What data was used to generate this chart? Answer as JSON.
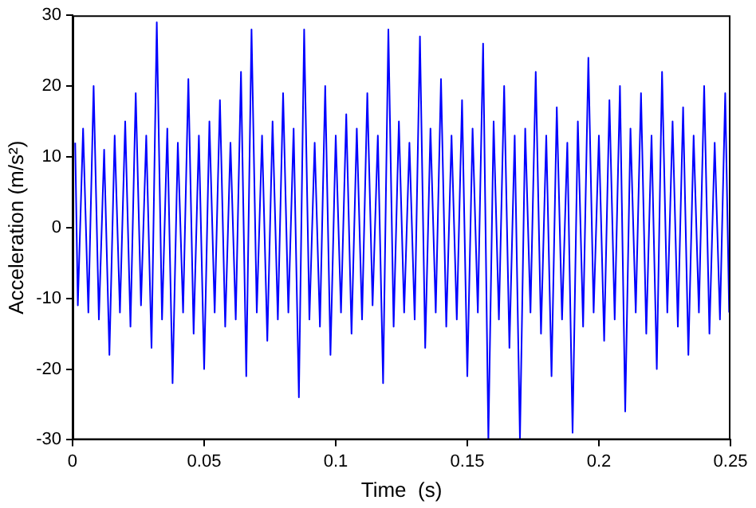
{
  "chart_data": {
    "type": "line",
    "xlabel": "Time  (s)",
    "ylabel": "Acceleration (m/s²)",
    "x": [
      0.001,
      0.002,
      0.004,
      0.006,
      0.008,
      0.01,
      0.012,
      0.014,
      0.016,
      0.018,
      0.02,
      0.022,
      0.024,
      0.026,
      0.028,
      0.03,
      0.032,
      0.034,
      0.036,
      0.038,
      0.04,
      0.042,
      0.044,
      0.046,
      0.048,
      0.05,
      0.052,
      0.054,
      0.056,
      0.058,
      0.06,
      0.062,
      0.064,
      0.066,
      0.068,
      0.07,
      0.072,
      0.074,
      0.076,
      0.078,
      0.08,
      0.082,
      0.084,
      0.086,
      0.088,
      0.09,
      0.092,
      0.094,
      0.096,
      0.098,
      0.1,
      0.102,
      0.104,
      0.106,
      0.108,
      0.11,
      0.112,
      0.114,
      0.116,
      0.118,
      0.12,
      0.122,
      0.124,
      0.126,
      0.128,
      0.13,
      0.132,
      0.134,
      0.136,
      0.138,
      0.14,
      0.142,
      0.144,
      0.146,
      0.148,
      0.15,
      0.152,
      0.154,
      0.156,
      0.158,
      0.16,
      0.162,
      0.164,
      0.166,
      0.168,
      0.17,
      0.172,
      0.174,
      0.176,
      0.178,
      0.18,
      0.182,
      0.184,
      0.186,
      0.188,
      0.19,
      0.192,
      0.194,
      0.196,
      0.198,
      0.2,
      0.202,
      0.204,
      0.206,
      0.208,
      0.21,
      0.212,
      0.214,
      0.216,
      0.218,
      0.22,
      0.222,
      0.224,
      0.226,
      0.228,
      0.23,
      0.232,
      0.234,
      0.236,
      0.238,
      0.24,
      0.242,
      0.244,
      0.246,
      0.248,
      0.2495
    ],
    "series": [
      {
        "color": "#0000ff",
        "values": [
          12,
          -11,
          14,
          -12,
          20,
          -13,
          11,
          -18,
          13,
          -12,
          15,
          -14,
          19,
          -11,
          13,
          -17,
          29,
          -13,
          14,
          -22,
          12,
          -12,
          21,
          -15,
          13,
          -20,
          15,
          -12,
          18,
          -14,
          12,
          -13,
          22,
          -21,
          28,
          -12,
          13,
          -16,
          15,
          -13,
          19,
          -12,
          14,
          -24,
          28,
          -13,
          12,
          -14,
          20,
          -18,
          13,
          -12,
          16,
          -15,
          14,
          -13,
          19,
          -11,
          13,
          -22,
          28,
          -14,
          15,
          -12,
          12,
          -13,
          27,
          -17,
          14,
          -12,
          21,
          -14,
          13,
          -13,
          18,
          -21,
          14,
          -12,
          26,
          -30,
          15,
          -13,
          20,
          -17,
          13,
          -30,
          14,
          -12,
          22,
          -15,
          13,
          -21,
          17,
          -13,
          12,
          -29,
          15,
          -14,
          24,
          -12,
          13,
          -16,
          18,
          -13,
          20,
          -26,
          14,
          -12,
          19,
          -15,
          13,
          -20,
          22,
          -12,
          15,
          -14,
          17,
          -18,
          13,
          -12,
          20,
          -15,
          12,
          -13,
          19,
          -12
        ]
      }
    ],
    "xlim": [
      0,
      0.25
    ],
    "xticks": [
      0,
      0.05,
      0.1,
      0.15,
      0.2,
      0.25
    ],
    "ylim": [
      -30,
      30
    ],
    "yticks": [
      -30,
      -20,
      -10,
      0,
      10,
      20,
      30
    ],
    "grid": false,
    "legend": false,
    "marker": "none",
    "line_style": "solid"
  }
}
